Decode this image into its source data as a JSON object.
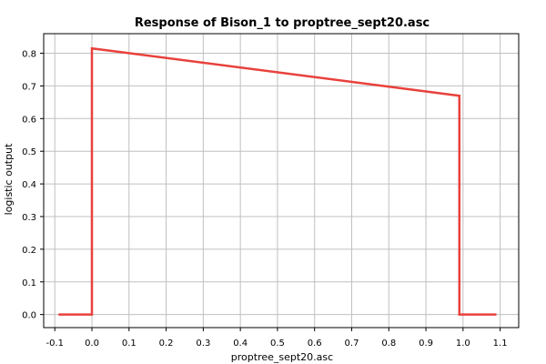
{
  "chart_data": {
    "type": "line",
    "title": "Response of Bison_1 to proptree_sept20.asc",
    "xlabel": "proptree_sept20.asc",
    "ylabel": "logistic output",
    "xlim": [
      -0.13,
      1.15
    ],
    "ylim": [
      -0.04,
      0.86
    ],
    "x_ticks": [
      -0.1,
      0.0,
      0.1,
      0.2,
      0.3,
      0.4,
      0.5,
      0.6,
      0.7,
      0.8,
      0.9,
      1.0,
      1.1
    ],
    "x_tick_labels": [
      "-0.1",
      "0.0",
      "0.1",
      "0.2",
      "0.3",
      "0.4",
      "0.5",
      "0.6",
      "0.7",
      "0.8",
      "0.9",
      "1.0",
      "1.1"
    ],
    "y_ticks": [
      0.0,
      0.1,
      0.2,
      0.3,
      0.4,
      0.5,
      0.6,
      0.7,
      0.8
    ],
    "y_tick_labels": [
      "0.0",
      "0.1",
      "0.2",
      "0.3",
      "0.4",
      "0.5",
      "0.6",
      "0.7",
      "0.8"
    ],
    "grid": true,
    "series": [
      {
        "color": "#e8413c",
        "x": [
          -0.09,
          0.0,
          0.0,
          0.99,
          0.99,
          1.09
        ],
        "y": [
          0.0,
          0.0,
          0.815,
          0.67,
          0.0,
          0.0
        ]
      }
    ]
  }
}
